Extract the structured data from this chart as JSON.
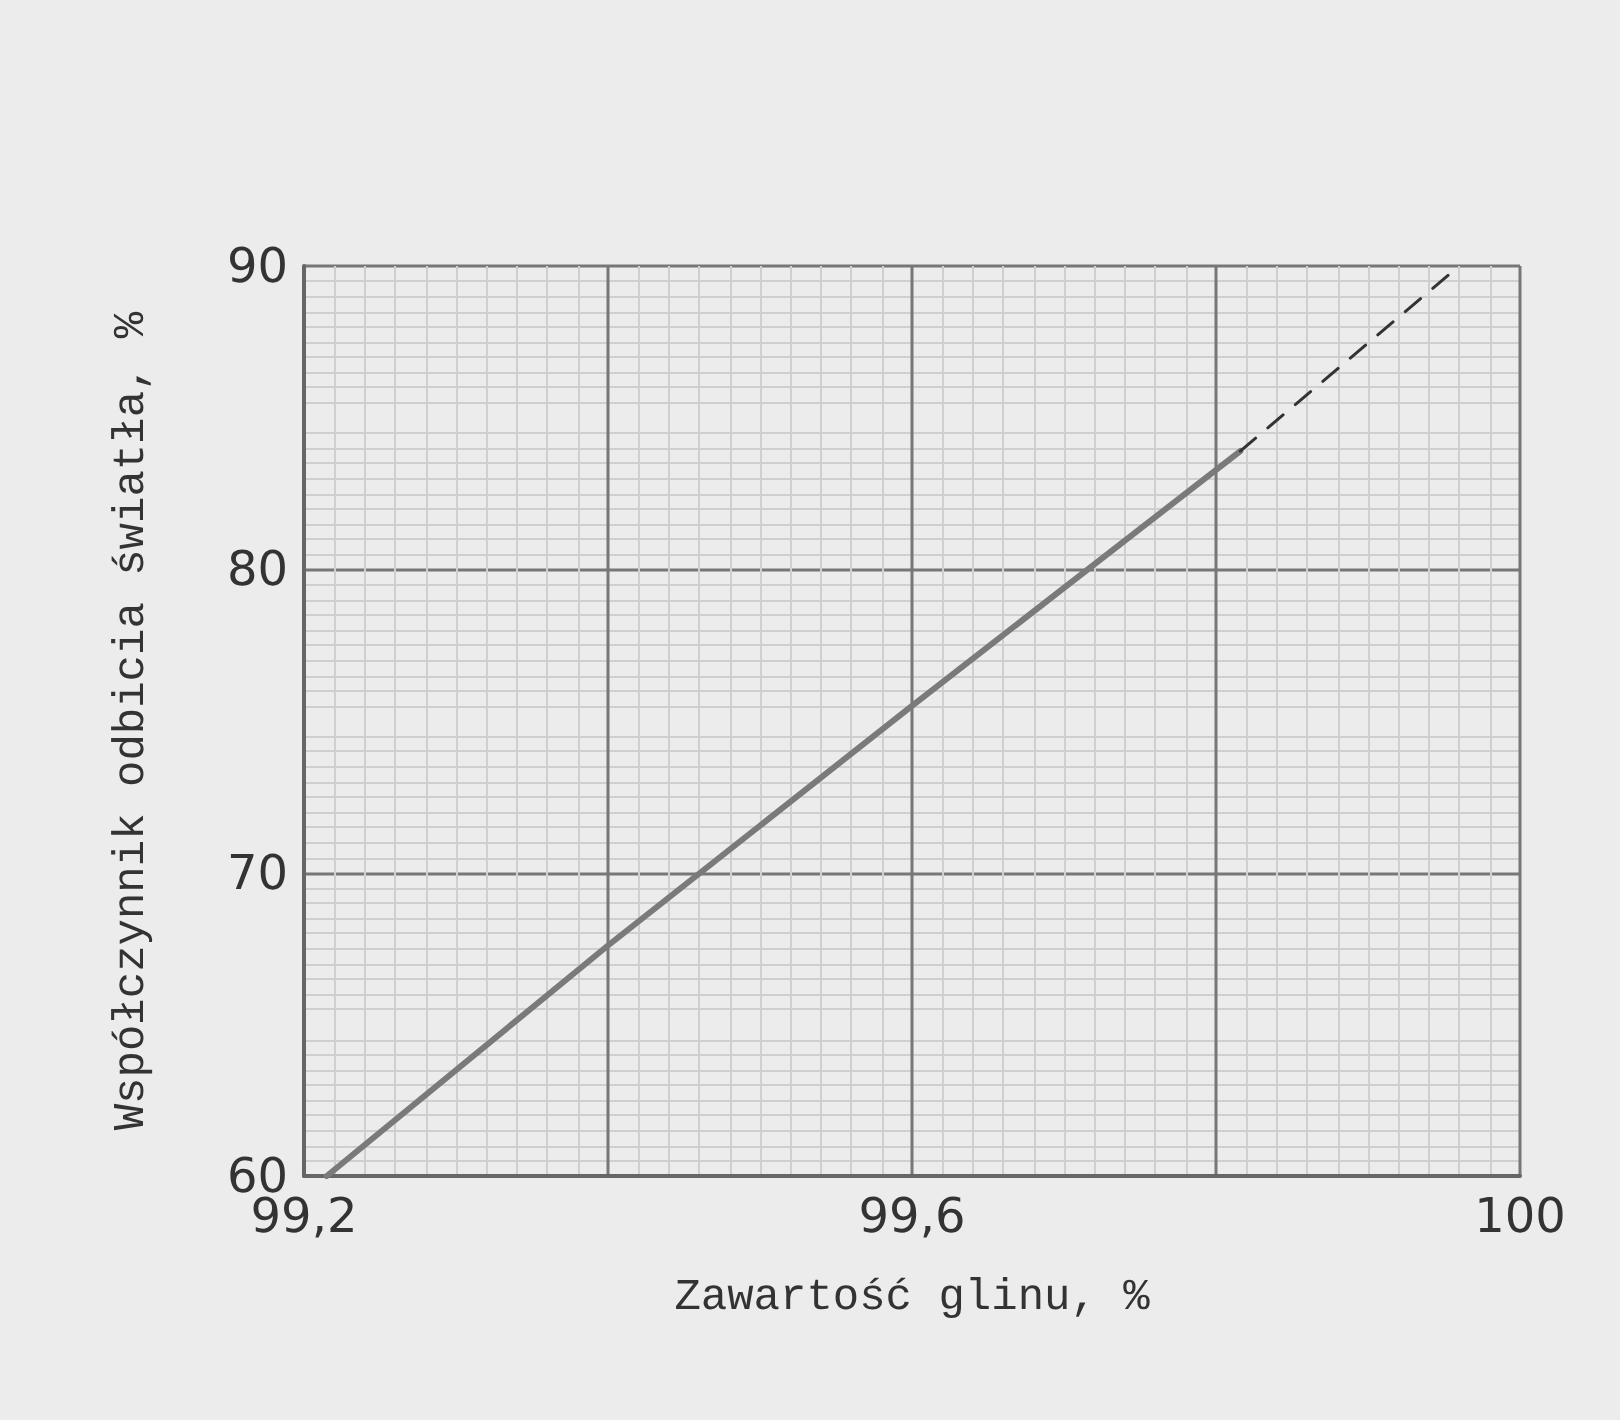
{
  "chart_data": {
    "type": "line",
    "xlabel": "Zawartość glinu, %",
    "ylabel": "Współczynnik odbicia światła, %",
    "xlim": [
      99.2,
      100
    ],
    "xticks": [
      {
        "value": 99.2,
        "label": "99,2"
      },
      {
        "value": 99.4,
        "label": null
      },
      {
        "value": 99.6,
        "label": "99,6"
      },
      {
        "value": 99.8,
        "label": null
      },
      {
        "value": 100,
        "label": "100"
      }
    ],
    "ylim": [
      60,
      90
    ],
    "yticks": [
      60,
      70,
      80,
      90
    ],
    "grid": true,
    "marker": "none",
    "series": [
      {
        "color": "#7a7a7a",
        "line_style": "solid",
        "x": [
          99.215,
          99.4,
          99.6,
          99.816
        ],
        "values": [
          60,
          67.6,
          75.5,
          83.9
        ]
      },
      {
        "color": "#333333",
        "line_style": "dashed",
        "x": [
          99.816,
          99.96
        ],
        "values": [
          83.9,
          90
        ]
      }
    ]
  }
}
